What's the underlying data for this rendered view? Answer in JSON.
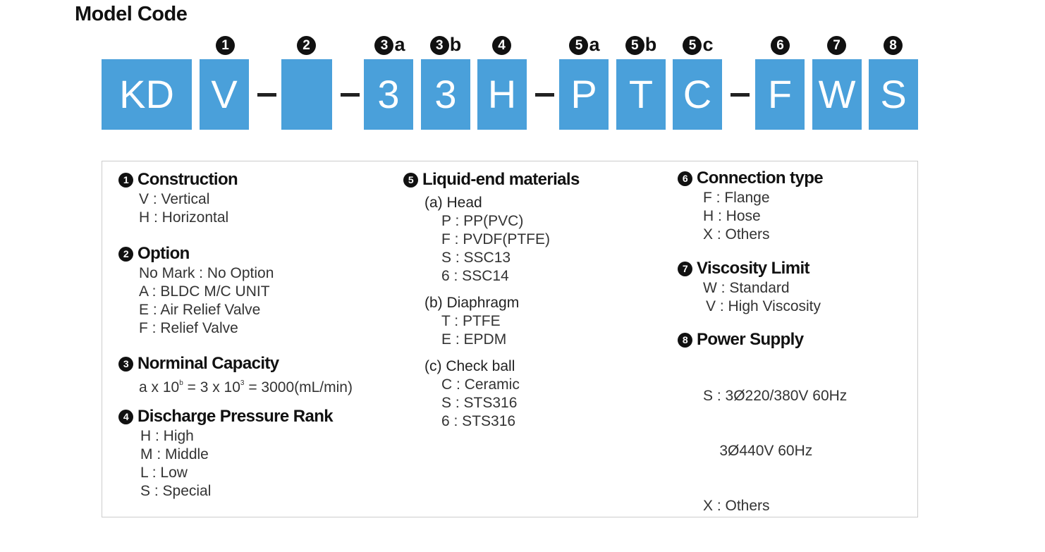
{
  "title": "Model Code",
  "accent_color": "#4aa0da",
  "code": {
    "badges": [
      {
        "num": "1",
        "suffix": ""
      },
      {
        "num": "2",
        "suffix": ""
      },
      {
        "num": "3",
        "suffix": "a"
      },
      {
        "num": "3",
        "suffix": "b"
      },
      {
        "num": "4",
        "suffix": ""
      },
      {
        "num": "5",
        "suffix": "a"
      },
      {
        "num": "5",
        "suffix": "b"
      },
      {
        "num": "5",
        "suffix": "c"
      },
      {
        "num": "6",
        "suffix": ""
      },
      {
        "num": "7",
        "suffix": ""
      },
      {
        "num": "8",
        "suffix": ""
      }
    ],
    "boxes": [
      "KD",
      "V",
      "",
      "3",
      "3",
      "H",
      "P",
      "T",
      "C",
      "F",
      "W",
      "S"
    ]
  },
  "legend": {
    "construction": {
      "num": "1",
      "title": "Construction",
      "lines": [
        "V : Vertical",
        "H : Horizontal"
      ]
    },
    "option": {
      "num": "2",
      "title": "Option",
      "lines": [
        "No Mark : No Option",
        "A : BLDC M/C UNIT",
        "E : Air Relief Valve",
        "F : Relief Valve"
      ]
    },
    "capacity": {
      "num": "3",
      "title": "Norminal Capacity",
      "f_a": "a x 10",
      "f_a_sup": "b",
      "f_eq": " = 3 x 10",
      "f_eq_sup": "3",
      "f_end": "  = 3000(mL/min)"
    },
    "pressure": {
      "num": "4",
      "title": "Discharge Pressure Rank",
      "lines": [
        "H : High",
        "M : Middle",
        "L : Low",
        "S : Special"
      ]
    },
    "materials": {
      "num": "5",
      "title": "Liquid-end materials",
      "head": {
        "label": "(a) Head",
        "lines": [
          "P : PP(PVC)",
          "F : PVDF(PTFE)",
          "S : SSC13",
          "6 : SSC14"
        ]
      },
      "diaphragm": {
        "label": "(b) Diaphragm",
        "lines": [
          "T : PTFE",
          "E : EPDM"
        ]
      },
      "check_ball": {
        "label": "(c) Check ball",
        "lines": [
          "C : Ceramic",
          "S : STS316",
          "6 : STS316"
        ]
      }
    },
    "connection": {
      "num": "6",
      "title": "Connection type",
      "lines": [
        "F : Flange",
        "H : Hose",
        "X : Others"
      ]
    },
    "viscosity": {
      "num": "7",
      "title": "Viscosity Limit",
      "lines": [
        "W : Standard",
        "V : High Viscosity"
      ]
    },
    "power": {
      "num": "8",
      "title": "Power Supply",
      "lines": [
        "S : 3Ø220/380V 60Hz",
        "    3Ø440V 60Hz",
        "X : Others"
      ]
    }
  }
}
